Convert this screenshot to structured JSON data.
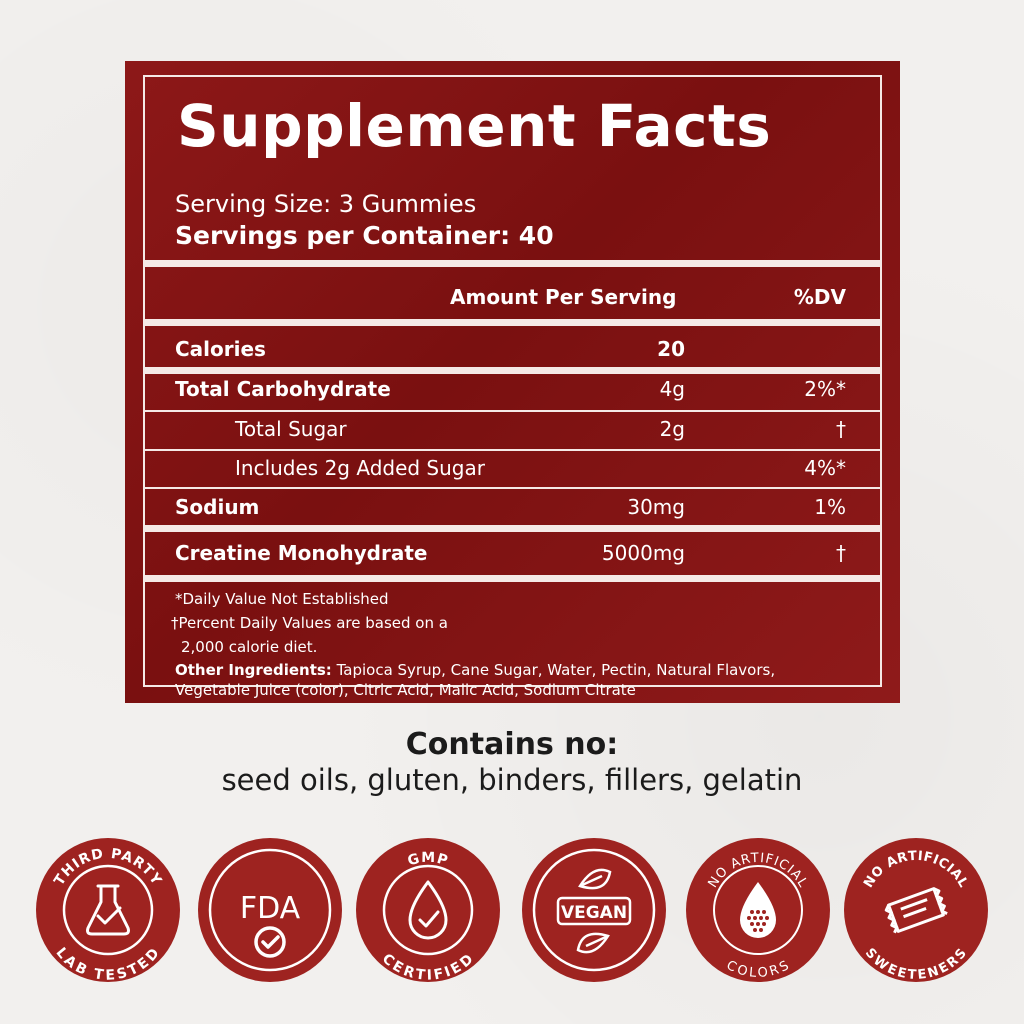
{
  "colors": {
    "panel": "#821414",
    "badge": "#9e2320",
    "text_light": "#ffffff",
    "text_dark": "#1b1b1b"
  },
  "facts": {
    "title": "Supplement Facts",
    "serving_size": "Serving Size: 3 Gummies",
    "servings_per_container": "Servings per Container: 40",
    "header_amount": "Amount Per Serving",
    "header_dv": "%DV",
    "rows": [
      {
        "label": "Calories",
        "amount": "20",
        "dv": ""
      },
      {
        "label": "Total Carbohydrate",
        "amount": "4g",
        "dv": "2%*"
      },
      {
        "label": "Total Sugar",
        "amount": "2g",
        "dv": "†"
      },
      {
        "label": "Includes 2g Added Sugar",
        "amount": "",
        "dv": "4%*"
      },
      {
        "label": "Sodium",
        "amount": "30mg",
        "dv": "1%"
      },
      {
        "label": "Creatine Monohydrate",
        "amount": "5000mg",
        "dv": "†"
      }
    ],
    "footnote_1": "*Daily Value Not Established",
    "footnote_2": "†Percent Daily Values are based on a",
    "footnote_3": "2,000 calorie diet.",
    "other_label": "Other Ingredients:",
    "other_text_1": "Tapioca Syrup, Cane Sugar, Water, Pectin, Natural Flavors,",
    "other_text_2": "Vegetable Juice (color), Citric Acid, Malic Acid, Sodium Citrate"
  },
  "contains": {
    "title": "Contains no:",
    "list": "seed oils, gluten, binders, fillers, gelatin"
  },
  "badges": [
    {
      "top": "THIRD PARTY",
      "bottom": "LAB TESTED",
      "icon": "flask-check-icon"
    },
    {
      "center": "FDA",
      "icon": "check-circle-icon"
    },
    {
      "top": "GMP",
      "bottom": "CERTIFIED",
      "icon": "drop-check-icon"
    },
    {
      "center": "VEGAN",
      "icon": "leaf-icon"
    },
    {
      "top": "NO ARTIFICIAL",
      "bottom": "COLORS",
      "icon": "dotted-drop-icon"
    },
    {
      "top": "NO ARTIFICIAL",
      "bottom": "SWEETENERS",
      "icon": "candy-packet-icon"
    }
  ]
}
